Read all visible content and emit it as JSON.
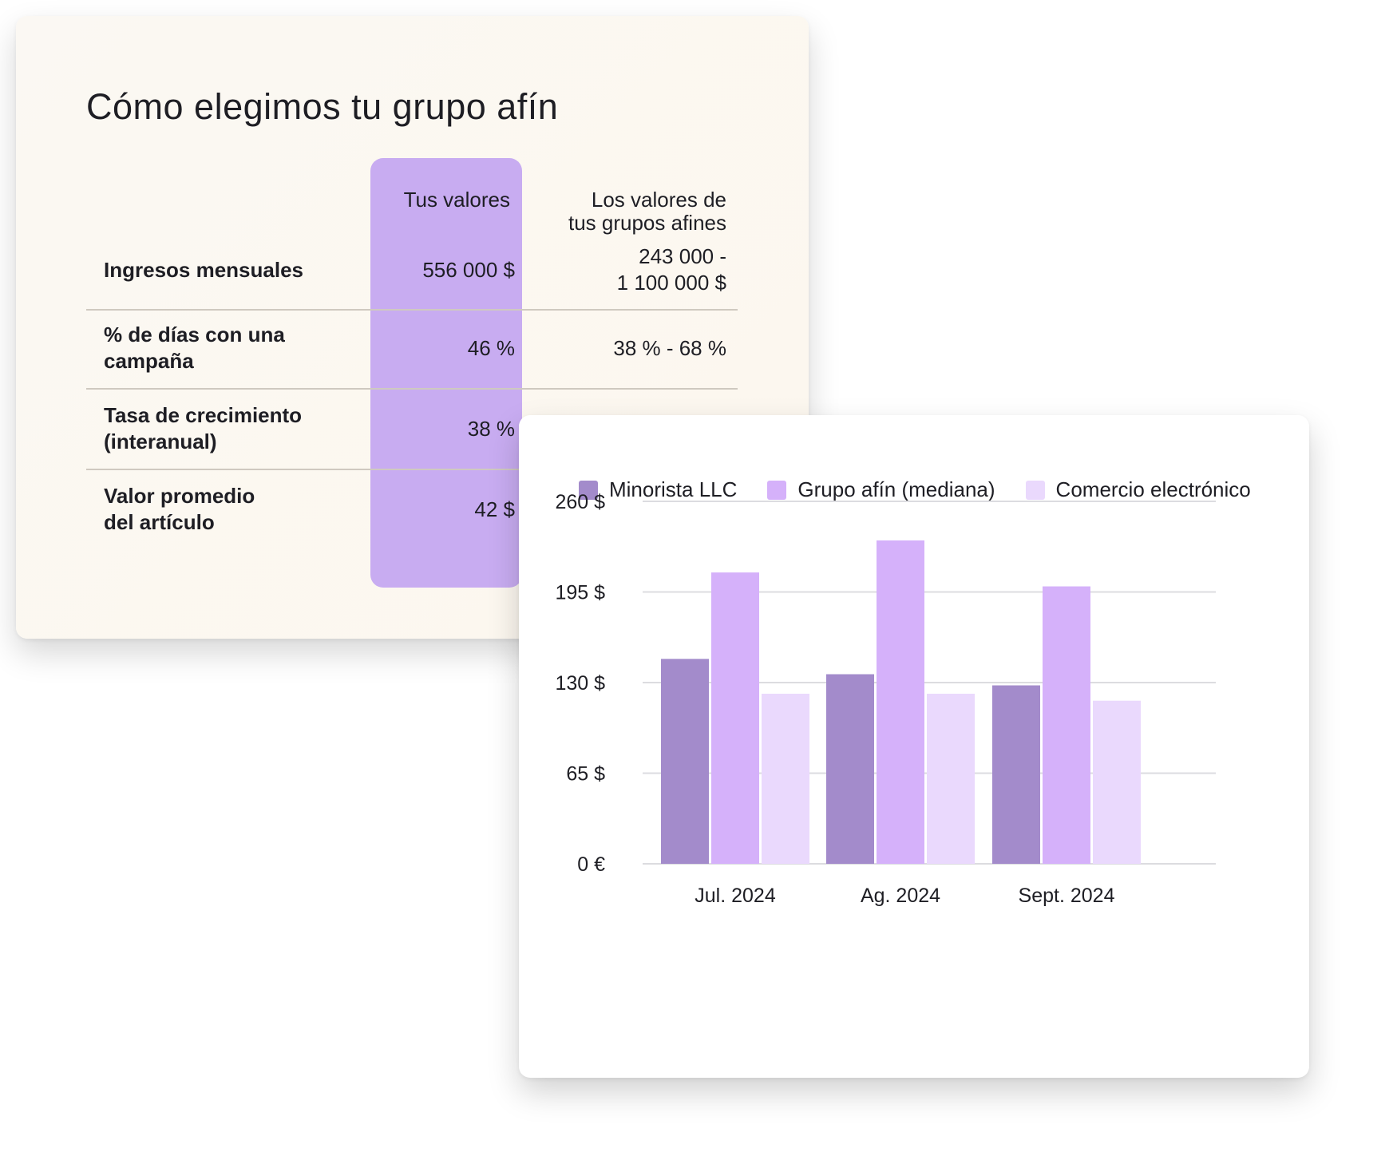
{
  "table": {
    "title": "Cómo elegimos tu grupo afín",
    "col_you": "Tus valores",
    "col_peer_line1": "Los valores de",
    "col_peer_line2": "tus grupos afines",
    "highlight_color": "#c8acf1",
    "rows": [
      {
        "label1": "Ingresos mensuales",
        "label2": "",
        "you": "556 000 $",
        "peer1": "243 000 -",
        "peer2": "1 100 000 $"
      },
      {
        "label1": "% de días con una",
        "label2": "campaña",
        "you": "46 %",
        "peer1": "38 % - 68 %",
        "peer2": ""
      },
      {
        "label1": "Tasa de crecimiento",
        "label2": "(interanual)",
        "you": "38 %",
        "peer1": "",
        "peer2": ""
      },
      {
        "label1": "Valor promedio",
        "label2": "del artículo",
        "you": "42 $",
        "peer1": "",
        "peer2": ""
      }
    ]
  },
  "chart_data": {
    "type": "bar",
    "categories": [
      "Jul. 2024",
      "Ag. 2024",
      "Sept. 2024"
    ],
    "series": [
      {
        "name": "Minorista LLC",
        "color": "#a38bcb",
        "values": [
          147,
          136,
          128
        ]
      },
      {
        "name": "Grupo afín (mediana)",
        "color": "#d5b1fa",
        "values": [
          209,
          232,
          199
        ]
      },
      {
        "name": "Comercio electrónico",
        "color": "#ead9fd",
        "values": [
          122,
          122,
          117
        ]
      }
    ],
    "ylim": [
      0,
      260
    ],
    "yticks": [
      0,
      65,
      130,
      195,
      260
    ],
    "ytick_labels": [
      "0 €",
      "65 $",
      "130 $",
      "195 $",
      "260 $"
    ],
    "title": "",
    "xlabel": "",
    "ylabel": "",
    "legend": "top",
    "grid": true
  }
}
